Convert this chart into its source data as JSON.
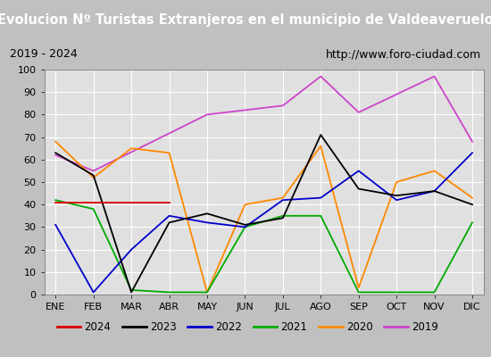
{
  "title": "Evolucion Nº Turistas Extranjeros en el municipio de Valdeaveruelo",
  "subtitle_left": "2019 - 2024",
  "subtitle_right": "http://www.foro-ciudad.com",
  "months": [
    "ENE",
    "FEB",
    "MAR",
    "ABR",
    "MAY",
    "JUN",
    "JUL",
    "AGO",
    "SEP",
    "OCT",
    "NOV",
    "DIC"
  ],
  "series": {
    "2024": [
      41,
      41,
      41,
      41,
      null,
      null,
      null,
      null,
      null,
      null,
      null,
      null
    ],
    "2023": [
      63,
      53,
      1,
      32,
      36,
      31,
      34,
      71,
      47,
      44,
      46,
      40
    ],
    "2022": [
      31,
      1,
      20,
      35,
      32,
      30,
      42,
      43,
      55,
      42,
      46,
      63
    ],
    "2021": [
      42,
      38,
      2,
      1,
      1,
      30,
      35,
      35,
      1,
      1,
      1,
      32
    ],
    "2020": [
      68,
      52,
      65,
      63,
      1,
      40,
      43,
      66,
      3,
      50,
      55,
      43
    ],
    "2019": [
      62,
      55,
      null,
      null,
      80,
      null,
      84,
      97,
      81,
      null,
      97,
      68
    ]
  },
  "colors": {
    "2024": "#dd0000",
    "2023": "#000000",
    "2022": "#0000cc",
    "2021": "#00aa00",
    "2020": "#ff8800",
    "2019": "#cc44cc"
  },
  "ylim": [
    0,
    100
  ],
  "plot_bg": "#e0e0e0",
  "outer_bg": "#c0c0c0",
  "title_bg": "#5b9bd5",
  "grid_color": "#ffffff",
  "legend_entries": [
    "2024",
    "2023",
    "2022",
    "2021",
    "2020",
    "2019"
  ],
  "title_fontsize": 10.5,
  "subtitle_fontsize": 9,
  "tick_fontsize": 8,
  "legend_fontsize": 8.5
}
